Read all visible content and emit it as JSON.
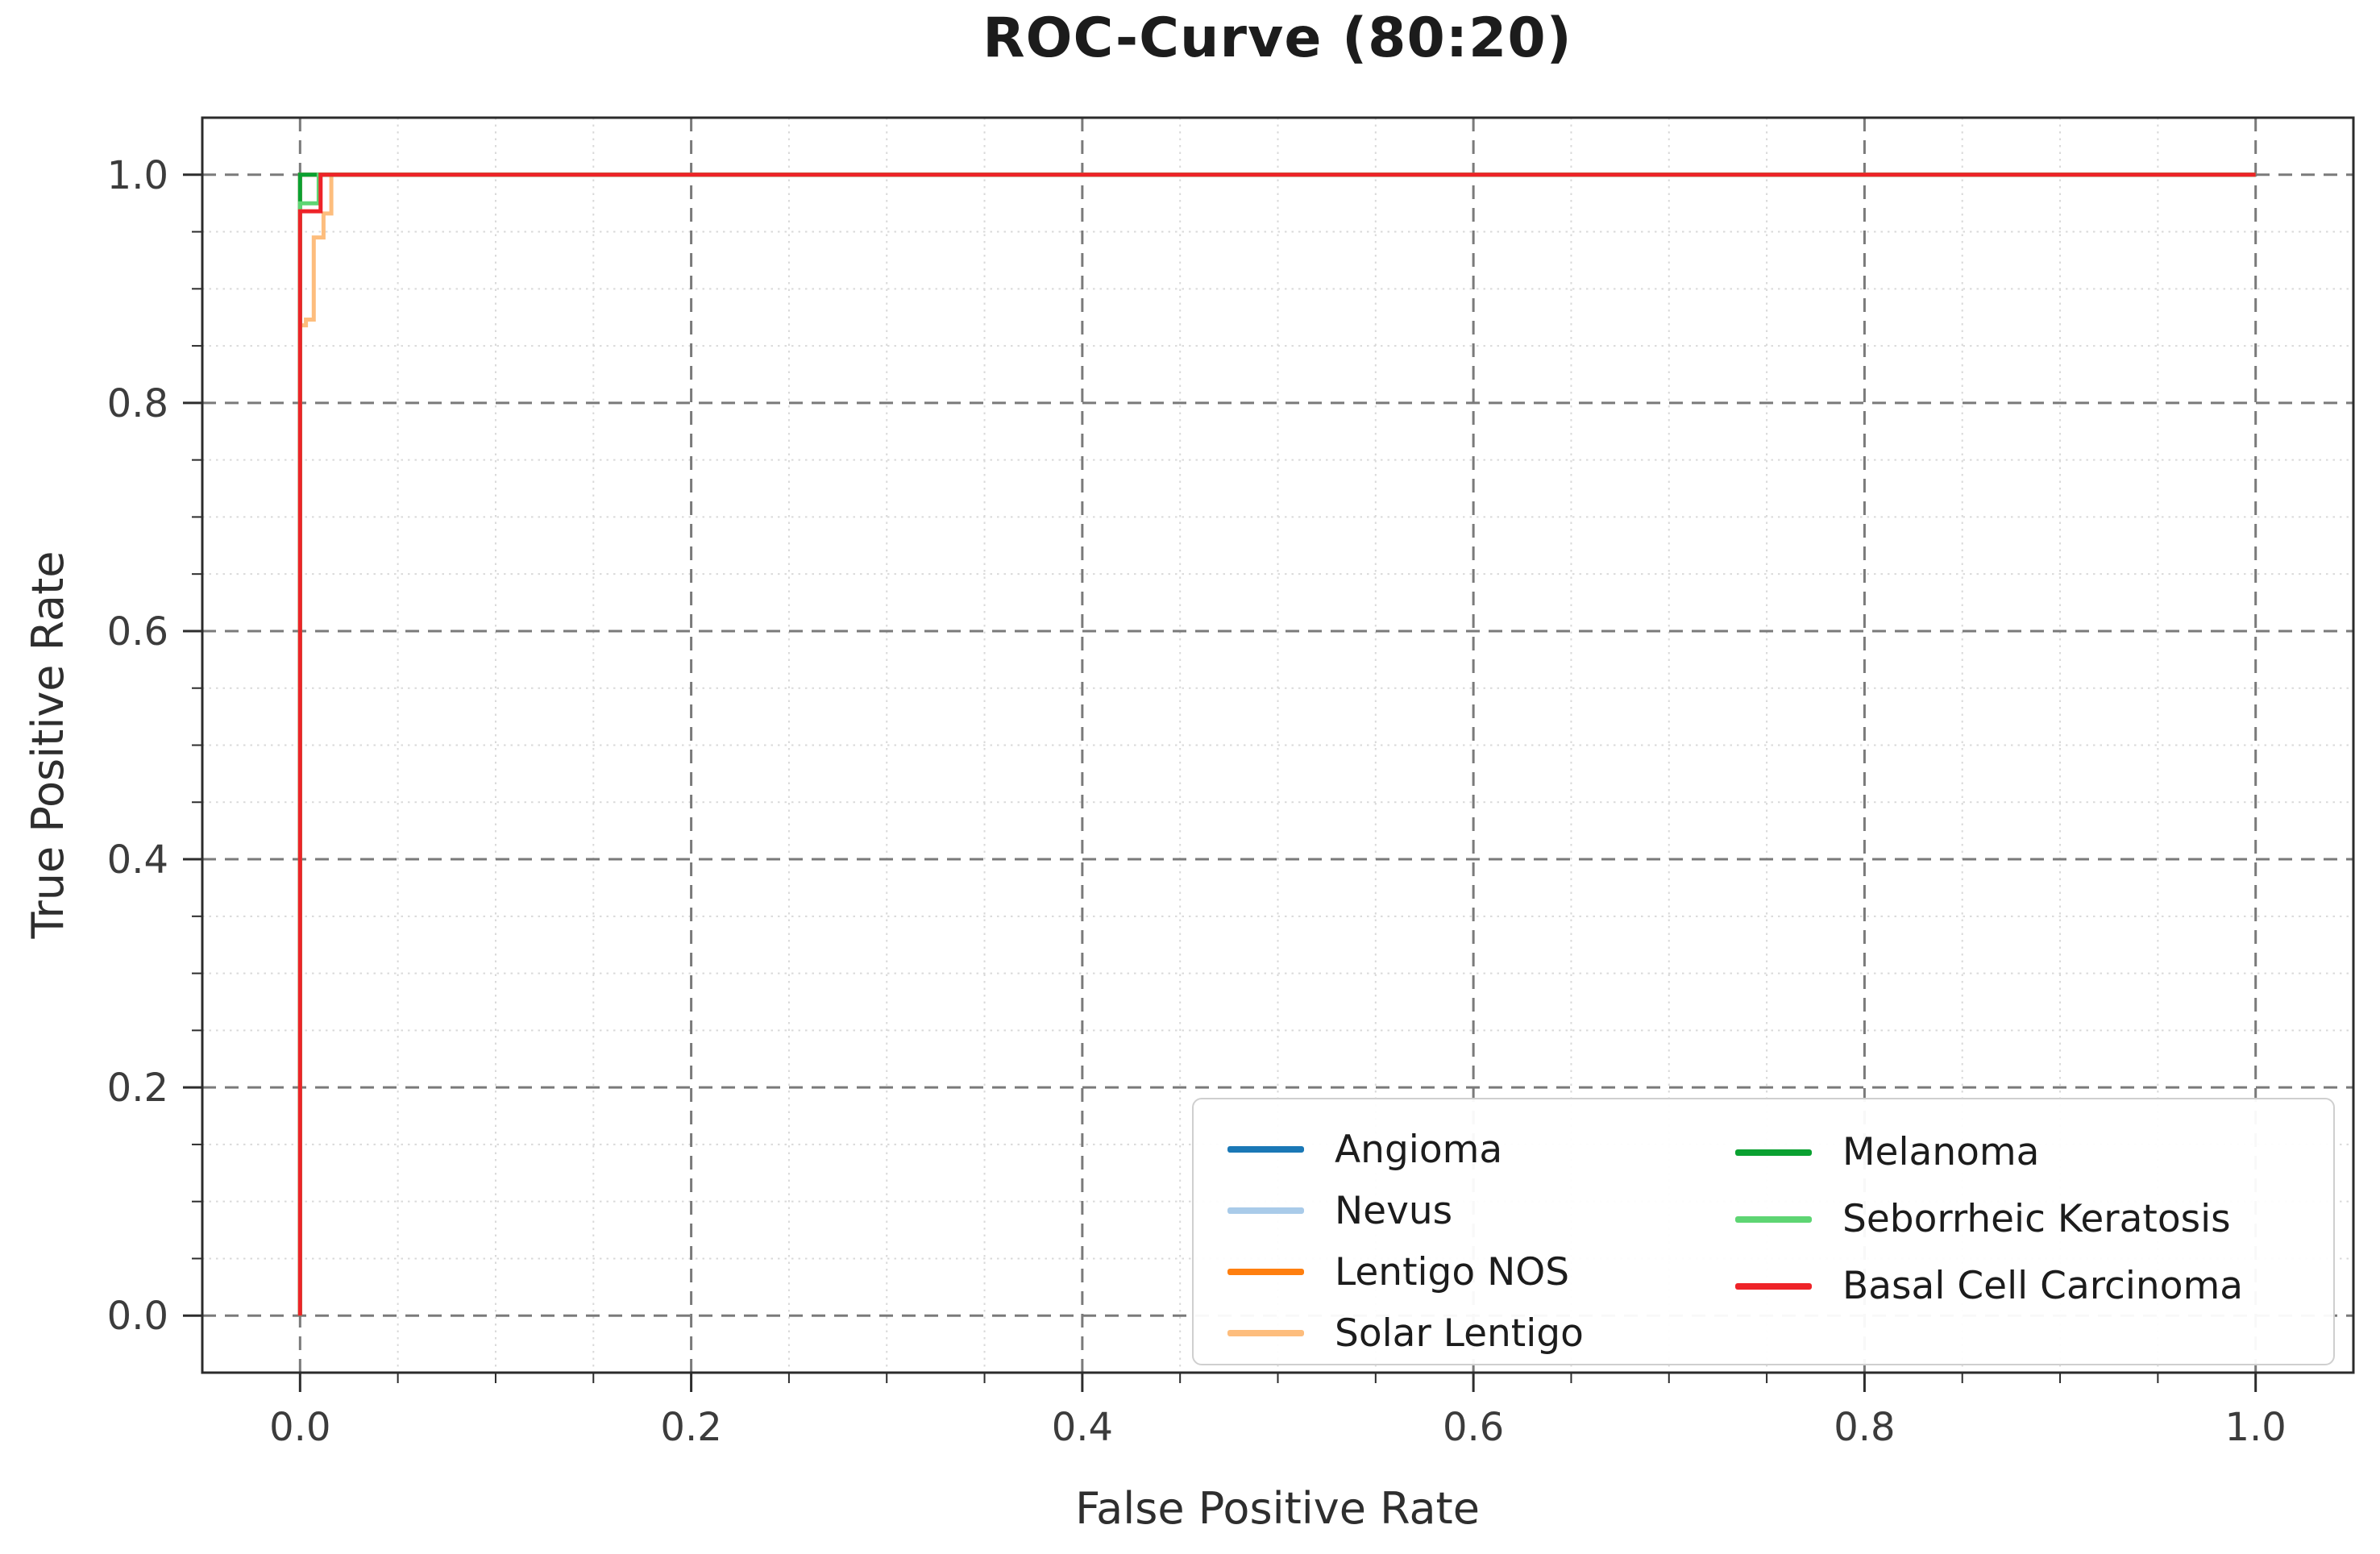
{
  "figure": {
    "title": "ROC-Curve (80:20)",
    "x_axis": {
      "label": "False Positive Rate",
      "tick_values": [
        0.0,
        0.2,
        0.4,
        0.6,
        0.8,
        1.0
      ],
      "tick_labels": [
        "0.0",
        "0.2",
        "0.4",
        "0.6",
        "0.8",
        "1.0"
      ],
      "minor_tick_step": 0.05,
      "range": [
        -0.05,
        1.05
      ]
    },
    "y_axis": {
      "label": "True Positive Rate",
      "tick_values": [
        0.0,
        0.2,
        0.4,
        0.6,
        0.8,
        1.0
      ],
      "tick_labels": [
        "0.0",
        "0.2",
        "0.4",
        "0.6",
        "0.8",
        "1.0"
      ],
      "minor_tick_step": 0.05,
      "range": [
        -0.05,
        1.05
      ]
    },
    "grid": {
      "major_style": "dashed",
      "major_color": "#7a7a7a",
      "minor_style": "dotted",
      "minor_color": "#d9d9d9"
    },
    "axis_border_color": "#2b2b2b",
    "tick_color": "#2d2d2d",
    "tick_label_color": "#3c3c3c"
  },
  "chart_data": {
    "type": "line",
    "subtype": "roc-curve",
    "title": "ROC-Curve (80:20)",
    "xlabel": "False Positive Rate",
    "ylabel": "True Positive Rate",
    "xlim": [
      -0.05,
      1.05
    ],
    "ylim": [
      -0.05,
      1.05
    ],
    "grid": true,
    "legend_position": "lower right",
    "legend_columns": 2,
    "legend_column_split": [
      4,
      3
    ],
    "line_width": 5,
    "series": [
      {
        "name": "Angioma",
        "color": "#1a78b6",
        "points": [
          [
            0,
            0
          ],
          [
            0,
            1
          ],
          [
            1,
            1
          ]
        ]
      },
      {
        "name": "Nevus",
        "color": "#a9cbe9",
        "points": [
          [
            0,
            0
          ],
          [
            0,
            1
          ],
          [
            1,
            1
          ]
        ]
      },
      {
        "name": "Lentigo NOS",
        "color": "#ff7f0f",
        "points": [
          [
            0,
            0
          ],
          [
            0,
            1
          ],
          [
            1,
            1
          ]
        ]
      },
      {
        "name": "Solar Lentigo",
        "color": "#fdbd7d",
        "points": [
          [
            0,
            0
          ],
          [
            0,
            0.868
          ],
          [
            0.003,
            0.868
          ],
          [
            0.003,
            0.873
          ],
          [
            0.007,
            0.873
          ],
          [
            0.007,
            0.945
          ],
          [
            0.012,
            0.945
          ],
          [
            0.012,
            0.966
          ],
          [
            0.016,
            0.966
          ],
          [
            0.016,
            1
          ],
          [
            1,
            1
          ]
        ]
      },
      {
        "name": "Melanoma",
        "color": "#0aa131",
        "points": [
          [
            0,
            0
          ],
          [
            0,
            1
          ],
          [
            1,
            1
          ]
        ]
      },
      {
        "name": "Seborrheic Keratosis",
        "color": "#5ed573",
        "points": [
          [
            0,
            0
          ],
          [
            0,
            0.975
          ],
          [
            0.0095,
            0.975
          ],
          [
            0.0095,
            1
          ],
          [
            1,
            1
          ]
        ]
      },
      {
        "name": "Basal Cell Carcinoma",
        "color": "#ee2328",
        "points": [
          [
            0,
            0
          ],
          [
            0,
            0.968
          ],
          [
            0.0105,
            0.968
          ],
          [
            0.0105,
            1
          ],
          [
            1,
            1
          ]
        ]
      }
    ]
  }
}
